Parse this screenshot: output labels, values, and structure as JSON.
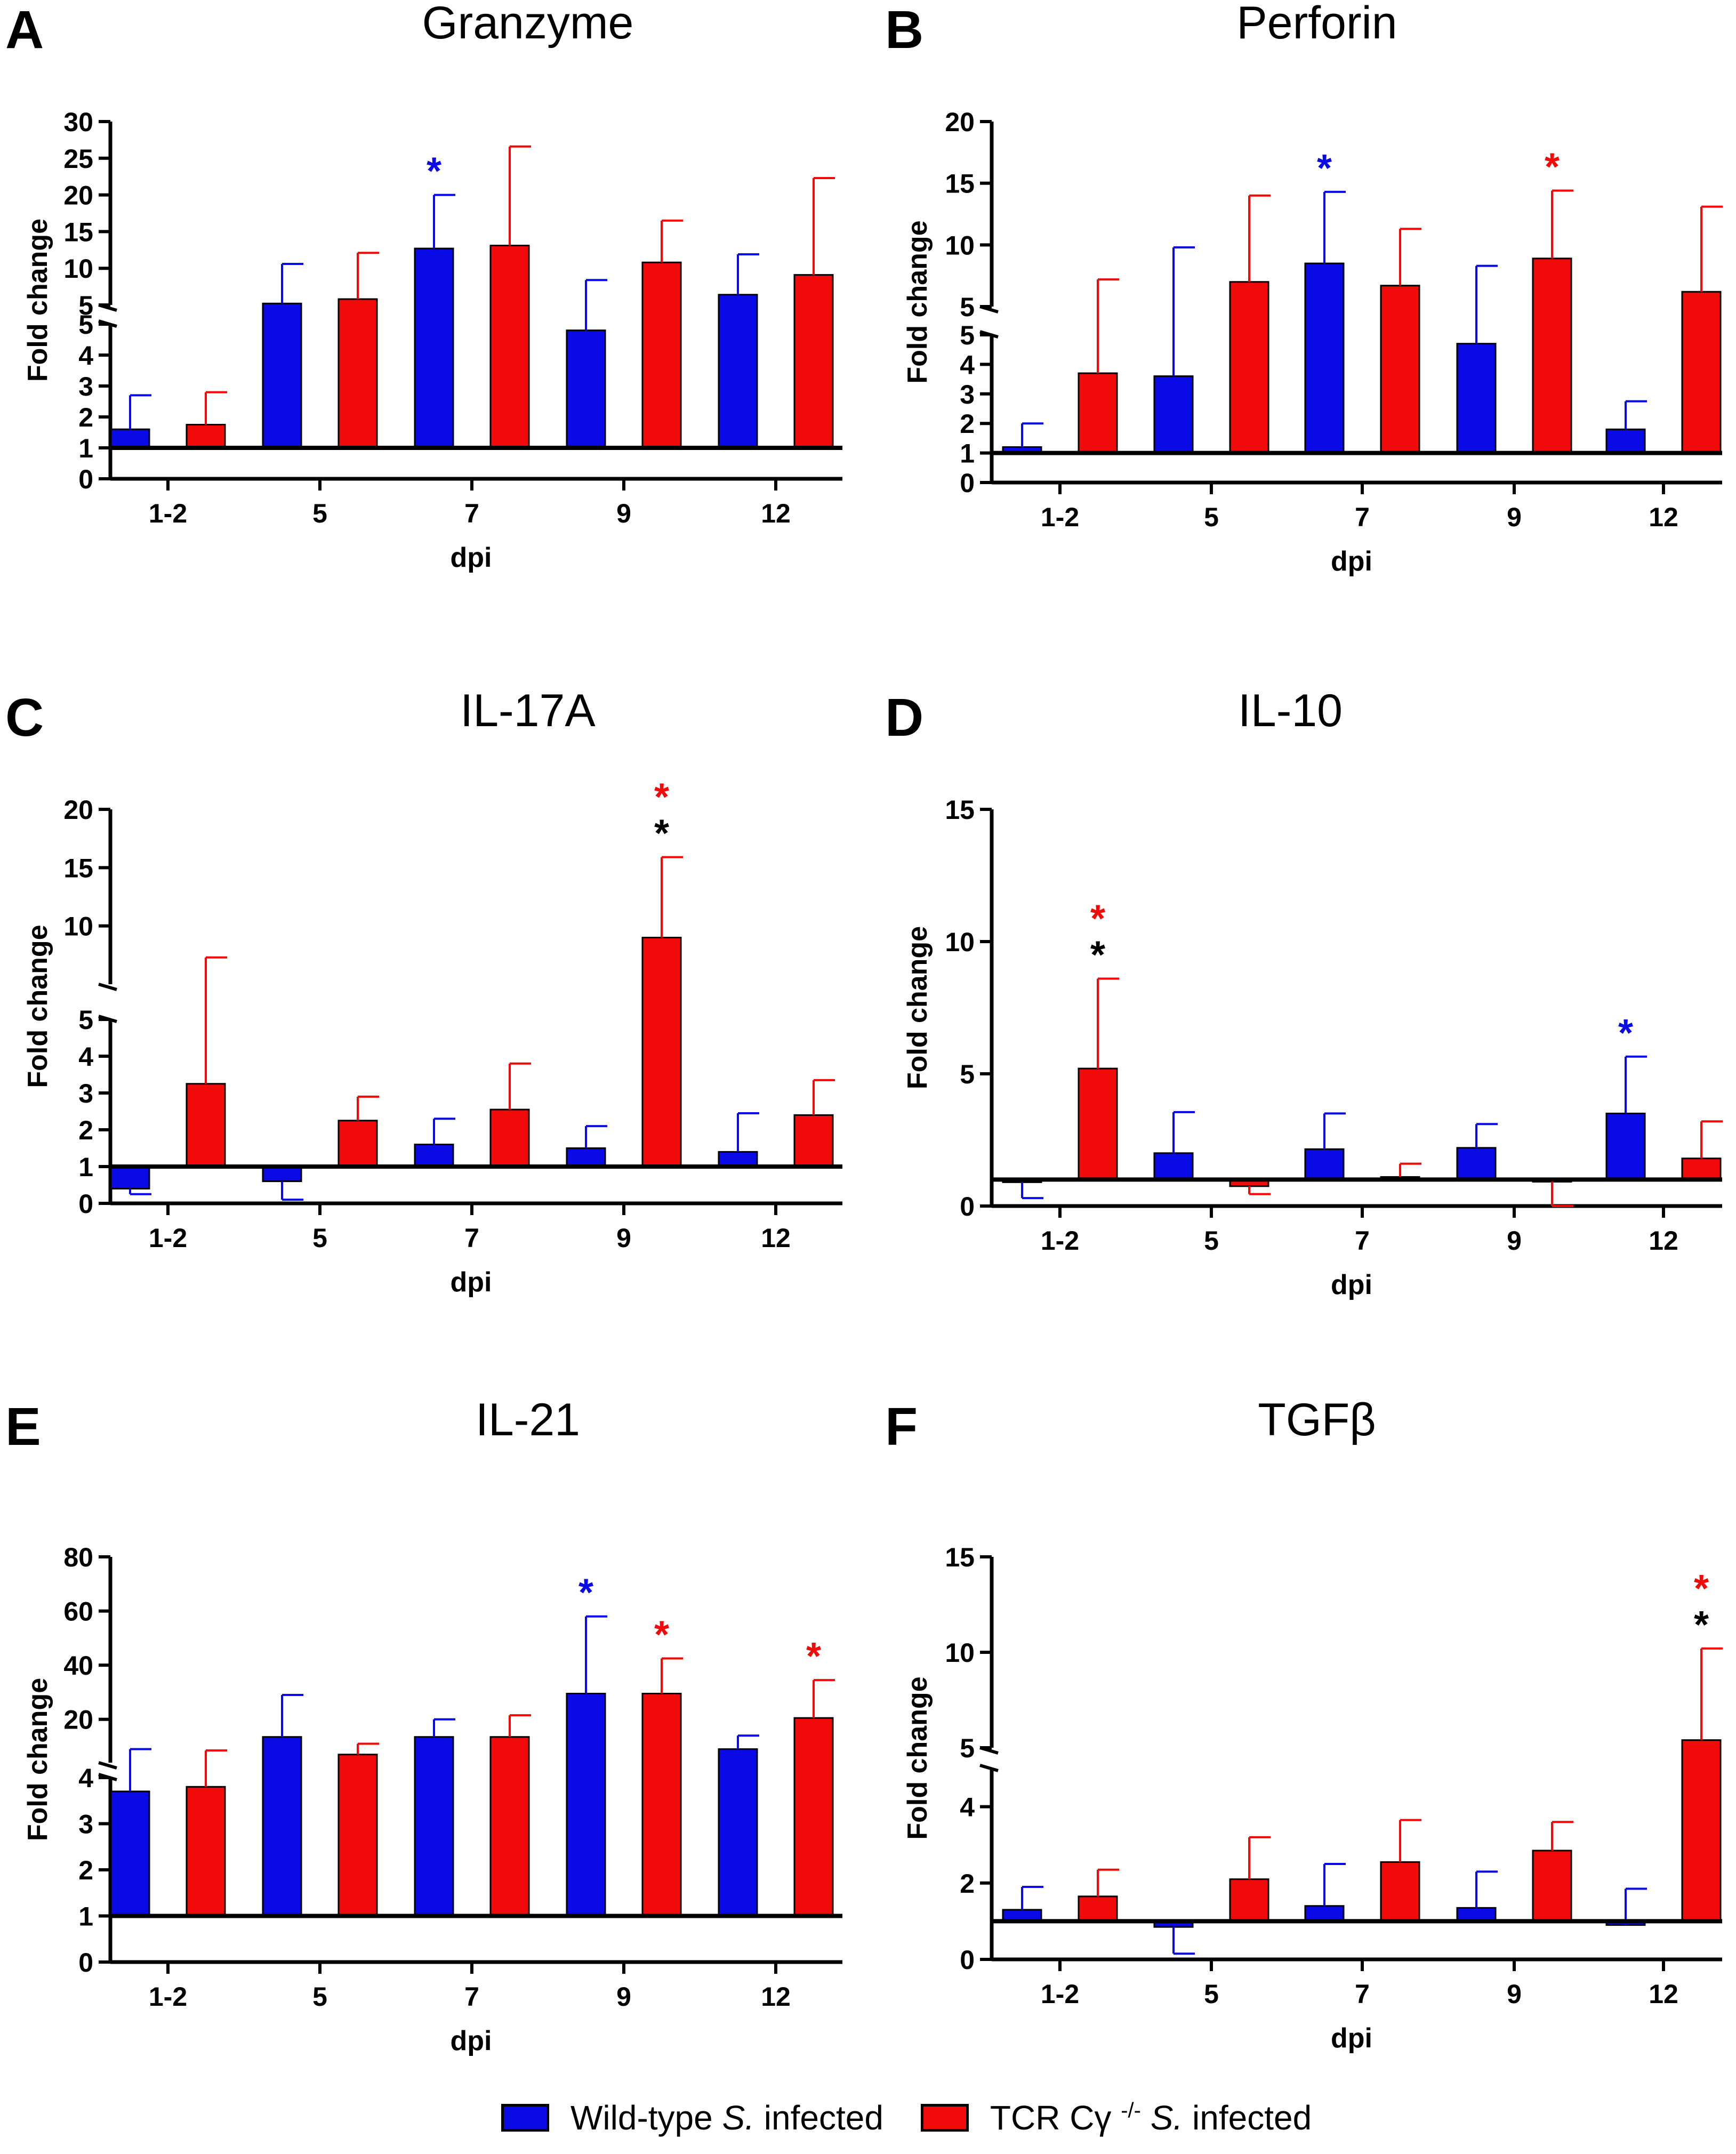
{
  "legend": {
    "wt": {
      "label_prefix": "Wild-type ",
      "label_italic": "S.",
      "label_suffix": " infected",
      "color": "#0a0ae6"
    },
    "ko": {
      "label_prefix": "TCR Cγ ",
      "label_sup": "-/-",
      "label_italic": " S.",
      "label_suffix": " infected",
      "color": "#f10a0a"
    }
  },
  "chart_data": [
    {
      "panel": "A",
      "type": "bar",
      "title": "Granzyme",
      "xlabel": "dpi",
      "ylabel": "Fold change",
      "categories": [
        "1-2",
        "5",
        "7",
        "9",
        "12"
      ],
      "lower_axis": {
        "ylim": [
          0,
          5
        ],
        "ticks": [
          "0",
          "1",
          "2",
          "3",
          "4",
          "5"
        ]
      },
      "upper_axis": {
        "ylim": [
          5,
          30
        ],
        "ticks": [
          "5",
          "10",
          "15",
          "20",
          "25",
          "30"
        ]
      },
      "baseline": 1,
      "series": [
        {
          "name": "Wild-type S. infected",
          "color": "#0a0ae6",
          "values": [
            1.6,
            5.2,
            12.7,
            4.8,
            6.4
          ],
          "errors": [
            2.7,
            10.6,
            20.0,
            8.4,
            11.9
          ]
        },
        {
          "name": "TCR Cγ -/- S. infected",
          "color": "#f10a0a",
          "values": [
            1.75,
            5.8,
            13.1,
            10.8,
            9.1
          ],
          "errors": [
            2.8,
            12.1,
            26.6,
            16.5,
            22.3
          ]
        }
      ],
      "annotations": [
        {
          "category": "7",
          "series": 0,
          "text": "*",
          "color": "#0a0ae6"
        }
      ]
    },
    {
      "panel": "B",
      "type": "bar",
      "title": "Perforin",
      "xlabel": "dpi",
      "ylabel": "Fold change",
      "categories": [
        "1-2",
        "5",
        "7",
        "9",
        "12"
      ],
      "lower_axis": {
        "ylim": [
          0,
          5
        ],
        "ticks": [
          "0",
          "1",
          "2",
          "3",
          "4",
          "5"
        ]
      },
      "upper_axis": {
        "ylim": [
          5,
          20
        ],
        "ticks": [
          "5",
          "10",
          "15",
          "20"
        ]
      },
      "baseline": 1,
      "series": [
        {
          "name": "Wild-type S. infected",
          "color": "#0a0ae6",
          "values": [
            1.2,
            3.6,
            8.5,
            4.7,
            1.8
          ],
          "errors": [
            2.0,
            9.8,
            14.3,
            8.3,
            2.75
          ]
        },
        {
          "name": "TCR Cγ -/- S. infected",
          "color": "#f10a0a",
          "values": [
            3.7,
            7.0,
            6.7,
            8.9,
            6.2
          ],
          "errors": [
            7.2,
            14.0,
            11.3,
            14.4,
            13.1
          ]
        }
      ],
      "annotations": [
        {
          "category": "7",
          "series": 0,
          "text": "*",
          "color": "#0a0ae6"
        },
        {
          "category": "9",
          "series": 1,
          "text": "*",
          "color": "#f10a0a"
        }
      ]
    },
    {
      "panel": "C",
      "type": "bar",
      "title": "IL-17A",
      "xlabel": "dpi",
      "ylabel": "Fold change",
      "categories": [
        "1-2",
        "5",
        "7",
        "9",
        "12"
      ],
      "lower_axis": {
        "ylim": [
          0,
          5
        ],
        "ticks": [
          "0",
          "1",
          "2",
          "3",
          "4",
          "5"
        ]
      },
      "upper_axis": {
        "ylim": [
          5,
          20
        ],
        "ticks": [
          "10",
          "15",
          "20"
        ]
      },
      "baseline": 1,
      "series": [
        {
          "name": "Wild-type S. infected",
          "color": "#0a0ae6",
          "values": [
            0.4,
            0.6,
            1.6,
            1.5,
            1.4
          ],
          "errors": [
            0.25,
            0.1,
            2.3,
            2.1,
            2.45
          ]
        },
        {
          "name": "TCR Cγ -/- S. infected",
          "color": "#f10a0a",
          "values": [
            3.25,
            2.25,
            2.55,
            9.0,
            2.4
          ],
          "errors": [
            7.3,
            2.9,
            3.8,
            15.9,
            3.35
          ]
        }
      ],
      "annotations": [
        {
          "category": "9",
          "series": 1,
          "text": "*",
          "color": "#f10a0a",
          "level": 2
        },
        {
          "category": "9",
          "series": 1,
          "text": "*",
          "color": "#000000",
          "level": 1
        }
      ]
    },
    {
      "panel": "D",
      "type": "bar",
      "title": "IL-10",
      "xlabel": "dpi",
      "ylabel": "Fold change",
      "categories": [
        "1-2",
        "5",
        "7",
        "9",
        "12"
      ],
      "axis": {
        "ylim": [
          0,
          15
        ],
        "ticks": [
          "0",
          "5",
          "10",
          "15"
        ]
      },
      "baseline": 1,
      "series": [
        {
          "name": "Wild-type S. infected",
          "color": "#0a0ae6",
          "values": [
            0.9,
            2.0,
            2.15,
            2.2,
            3.5
          ],
          "errors": [
            0.3,
            3.55,
            3.5,
            3.1,
            5.65
          ]
        },
        {
          "name": "TCR Cγ -/- S. infected",
          "color": "#f10a0a",
          "values": [
            5.2,
            0.75,
            1.1,
            1.0,
            1.8
          ],
          "errors": [
            8.6,
            0.45,
            1.6,
            0.0,
            3.2
          ]
        }
      ],
      "annotations": [
        {
          "category": "1-2",
          "series": 1,
          "text": "*",
          "color": "#f10a0a",
          "level": 2
        },
        {
          "category": "1-2",
          "series": 1,
          "text": "*",
          "color": "#000000",
          "level": 1
        },
        {
          "category": "12",
          "series": 0,
          "text": "*",
          "color": "#0a0ae6",
          "level": 1
        }
      ]
    },
    {
      "panel": "E",
      "type": "bar",
      "title": "IL-21",
      "xlabel": "dpi",
      "ylabel": "Fold change",
      "categories": [
        "1-2",
        "5",
        "7",
        "9",
        "12"
      ],
      "lower_axis": {
        "ylim": [
          0,
          4
        ],
        "ticks": [
          "0",
          "1",
          "2",
          "3",
          "4"
        ]
      },
      "upper_axis": {
        "ylim": [
          4,
          80
        ],
        "ticks": [
          "20",
          "40",
          "60",
          "80"
        ]
      },
      "baseline": 1,
      "series": [
        {
          "name": "Wild-type S. infected",
          "color": "#0a0ae6",
          "values": [
            3.7,
            13.5,
            13.5,
            29.5,
            9.0
          ],
          "errors": [
            9.0,
            29.0,
            20.0,
            58.0,
            14.0
          ]
        },
        {
          "name": "TCR Cγ -/- S. infected",
          "color": "#f10a0a",
          "values": [
            3.8,
            7.0,
            13.5,
            29.5,
            20.5
          ],
          "errors": [
            8.5,
            11.0,
            21.5,
            42.5,
            34.5
          ]
        }
      ],
      "annotations": [
        {
          "category": "9",
          "series": 0,
          "text": "*",
          "color": "#0a0ae6"
        },
        {
          "category": "9",
          "series": 1,
          "text": "*",
          "color": "#f10a0a"
        },
        {
          "category": "12",
          "series": 1,
          "text": "*",
          "color": "#f10a0a"
        }
      ]
    },
    {
      "panel": "F",
      "type": "bar",
      "title": "TGFβ",
      "xlabel": "dpi",
      "ylabel": "Fold change",
      "categories": [
        "1-2",
        "5",
        "7",
        "9",
        "12"
      ],
      "lower_axis": {
        "ylim": [
          0,
          5
        ],
        "ticks": [
          "0",
          "2",
          "4"
        ]
      },
      "upper_axis": {
        "ylim": [
          5,
          15
        ],
        "ticks": [
          "5",
          "10",
          "15"
        ]
      },
      "baseline": 1,
      "series": [
        {
          "name": "Wild-type S. infected",
          "color": "#0a0ae6",
          "values": [
            1.3,
            0.85,
            1.4,
            1.35,
            0.9
          ],
          "errors": [
            1.9,
            0.15,
            2.5,
            2.3,
            1.85
          ]
        },
        {
          "name": "TCR Cγ -/- S. infected",
          "color": "#f10a0a",
          "values": [
            1.65,
            2.1,
            2.55,
            2.85,
            5.4
          ],
          "errors": [
            2.35,
            3.2,
            3.65,
            3.6,
            10.2
          ]
        }
      ],
      "annotations": [
        {
          "category": "12",
          "series": 1,
          "text": "*",
          "color": "#f10a0a",
          "level": 2
        },
        {
          "category": "12",
          "series": 1,
          "text": "*",
          "color": "#000000",
          "level": 1
        }
      ]
    }
  ]
}
